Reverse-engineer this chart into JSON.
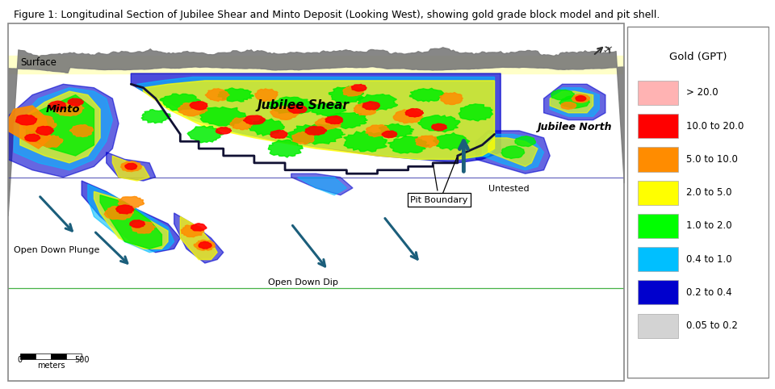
{
  "title": "Figure 1: Longitudinal Section of Jubilee Shear and Minto Deposit (Looking West), showing gold grade block model and pit shell.",
  "title_fontsize": 9,
  "background_color": "#ffffff",
  "outer_bg": "#f0f0f0",
  "plot_bg_color": "#ffffff",
  "legend_title": "Gold (GPT)",
  "legend_entries": [
    {
      "label": "> 20.0",
      "color": "#ffb3b3"
    },
    {
      "label": "10.0 to 20.0",
      "color": "#ff0000"
    },
    {
      "label": "5.0 to 10.0",
      "color": "#ff8c00"
    },
    {
      "label": "2.0 to 5.0",
      "color": "#ffff00"
    },
    {
      "label": "1.0 to 2.0",
      "color": "#00ff00"
    },
    {
      "label": "0.4 to 1.0",
      "color": "#00bfff"
    },
    {
      "label": "0.2 to 0.4",
      "color": "#0000cd"
    },
    {
      "label": "0.05 to 0.2",
      "color": "#d3d3d3"
    }
  ],
  "surface_label": "Surface",
  "jubilee_shear_label": "Jubilee Shear",
  "minto_label": "Minto",
  "jubilee_north_label": "Jubilee North",
  "untested_label": "Untested",
  "pit_boundary_label": "Pit Boundary",
  "open_down_dip_label": "Open Down Dip",
  "open_down_plunge_label": "Open Down Plunge",
  "arrow_color": "#1b5e7b",
  "pit_boundary_color": "#111133",
  "topo_color": "#888888",
  "surface_line_color": "#cccc00",
  "blue_line_color": "#3333aa",
  "green_line_color": "#33aa33",
  "scalebar_label": "meters",
  "scalebar_500": "500",
  "scalebar_0": "0",
  "north_arrow_color": "#1b5e7b"
}
